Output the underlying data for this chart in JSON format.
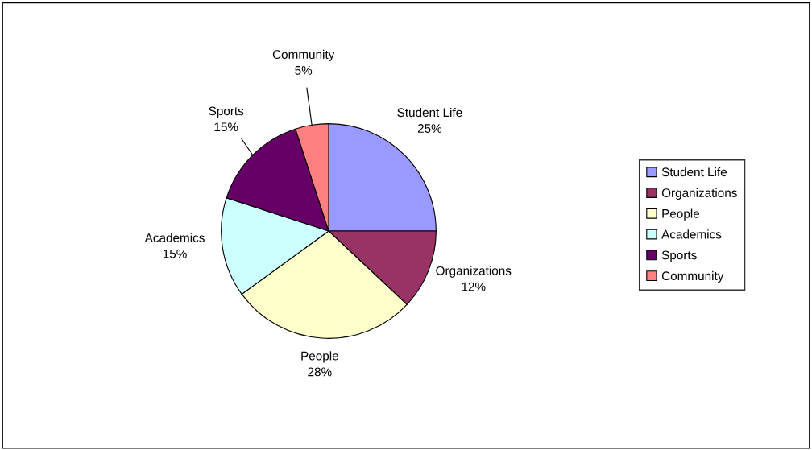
{
  "chart_data": {
    "type": "pie",
    "categories": [
      "Student Life",
      "Organizations",
      "People",
      "Academics",
      "Sports",
      "Community"
    ],
    "values": [
      25,
      12,
      28,
      15,
      15,
      5
    ],
    "colors": [
      "#9999ff",
      "#993366",
      "#ffffcc",
      "#ccffff",
      "#660066",
      "#ff8080"
    ],
    "value_labels": [
      "25%",
      "12%",
      "28%",
      "15%",
      "15%",
      "5%"
    ],
    "legend": "right"
  }
}
